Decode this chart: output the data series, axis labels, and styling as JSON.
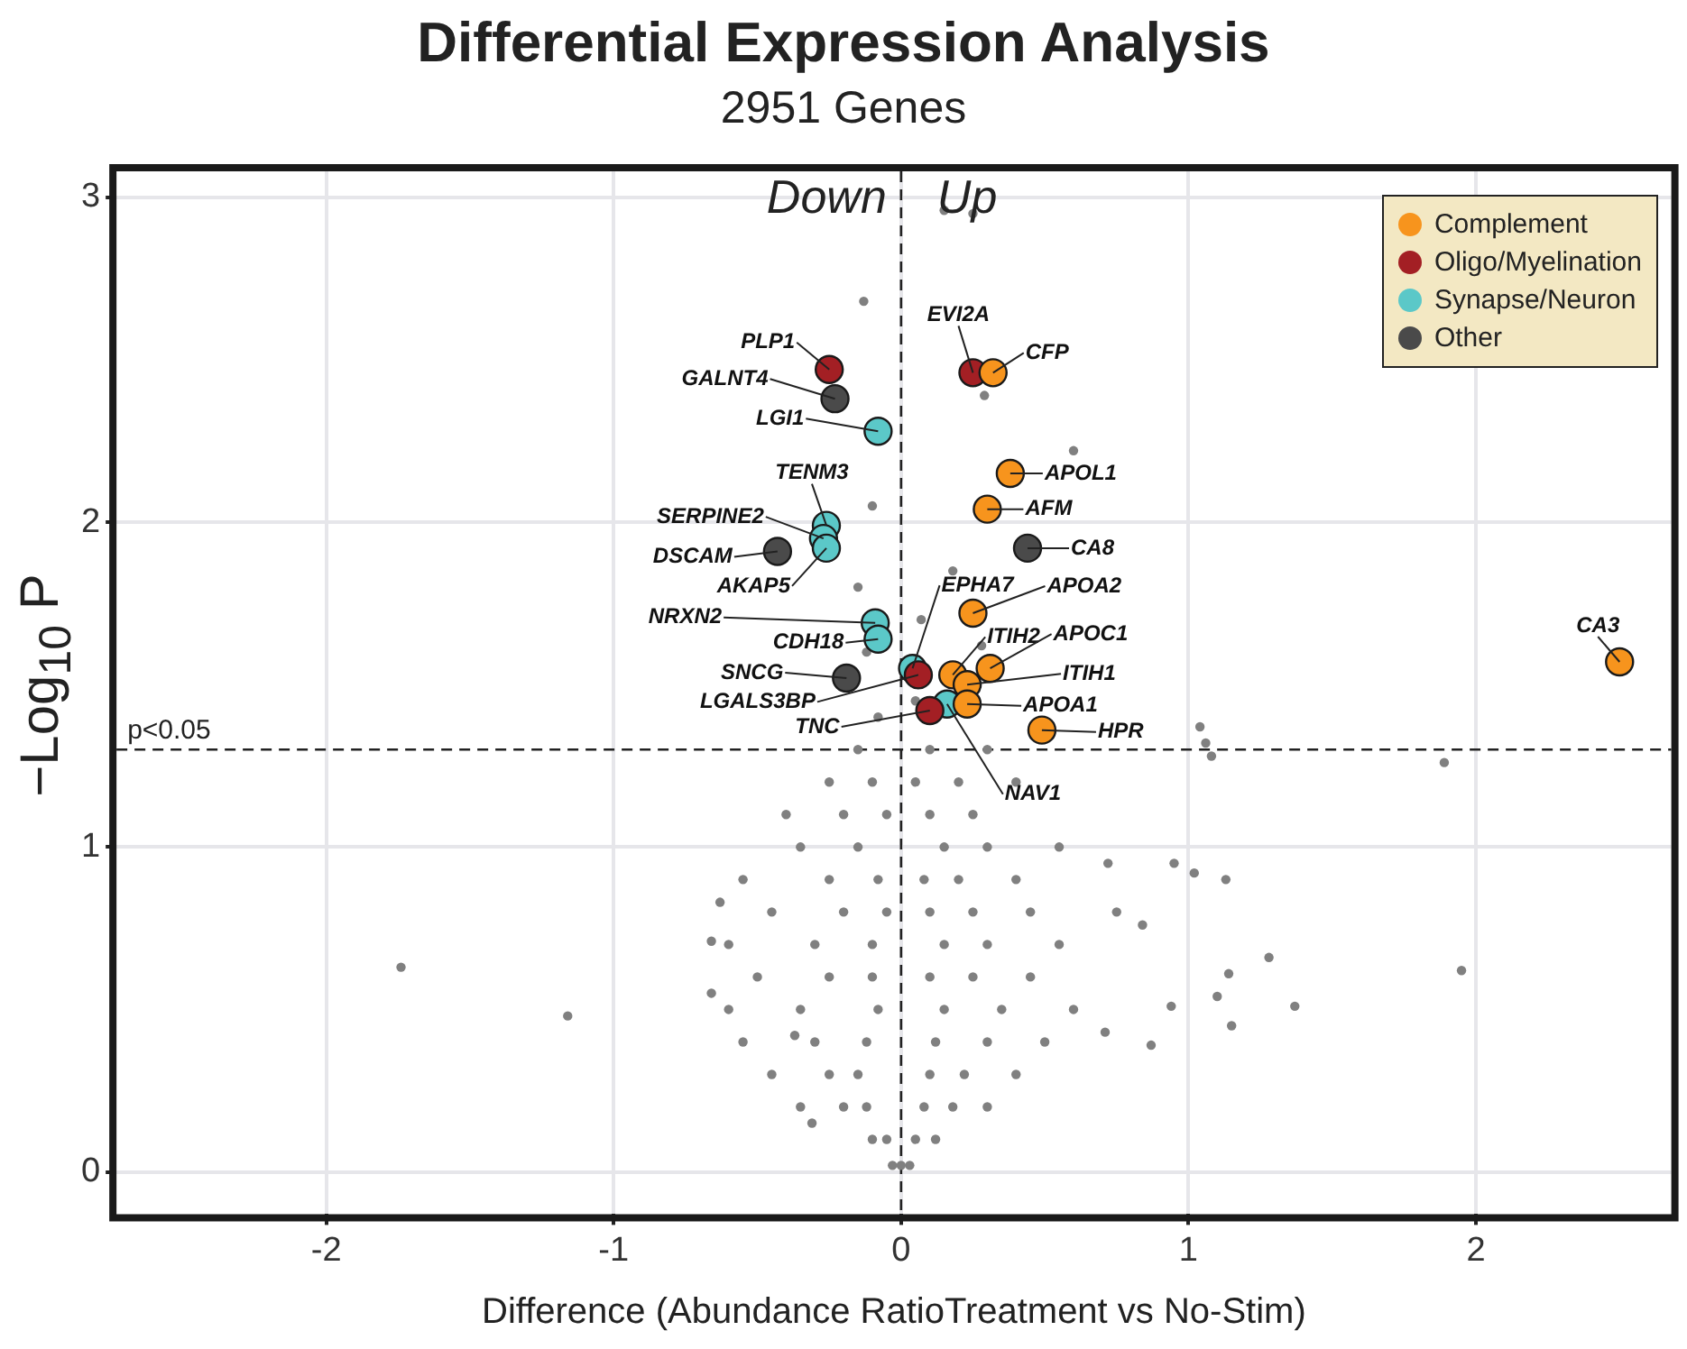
{
  "chart_data": {
    "type": "scatter",
    "title": "Differential Expression Analysis",
    "subtitle": "2951 Genes",
    "xlabel": "Difference (Abundance RatioTreatment vs No-Stim)",
    "ylabel": "−Log$_{10}$ P",
    "xlim": [
      -2.73,
      2.68
    ],
    "ylim": [
      -0.13,
      3.08
    ],
    "xticks": [
      -2,
      -1,
      0,
      1,
      2
    ],
    "yticks": [
      0,
      1,
      2,
      3
    ],
    "grid": true,
    "legend": "top right",
    "marker": "circle",
    "ref_lines": [
      {
        "axis": "y",
        "value": 1.3,
        "label": "p<0.05",
        "line_style": "dashed"
      },
      {
        "axis": "x",
        "value": 0,
        "line_style": "dashed"
      }
    ],
    "series": [
      {
        "color": "#808080",
        "x": [
          0.0,
          -0.03,
          0.03,
          -0.1,
          0.05,
          -0.05,
          0.12,
          -0.2,
          -0.12,
          0.08,
          0.18,
          -0.35,
          0.3,
          -0.25,
          -0.15,
          0.1,
          0.22,
          -0.45,
          0.4,
          -0.3,
          -0.12,
          0.12,
          0.3,
          -0.55,
          0.5,
          -0.35,
          -0.08,
          0.15,
          0.35,
          -0.6,
          0.6,
          -0.25,
          -0.1,
          0.1,
          0.25,
          0.45,
          -0.5,
          -0.3,
          -0.1,
          0.15,
          0.3,
          -0.6,
          0.55,
          -0.2,
          -0.05,
          0.1,
          0.25,
          -0.45,
          0.45,
          0.75,
          -0.25,
          -0.08,
          0.08,
          0.2,
          0.4,
          -0.55,
          -0.15,
          0.15,
          0.3,
          -0.35,
          0.55,
          -0.2,
          -0.05,
          0.1,
          0.25,
          -0.4,
          -0.25,
          -0.1,
          0.05,
          0.2,
          0.4,
          -0.15,
          0.1,
          0.3,
          -0.08,
          0.05,
          -0.12,
          0.28,
          -0.15,
          0.18,
          -0.1,
          0.07,
          -0.13,
          0.29,
          0.6,
          0.15,
          0.25,
          -1.74,
          -1.16,
          1.04,
          1.06,
          1.08,
          1.89,
          1.95,
          0.95,
          1.02,
          1.13,
          1.28,
          1.14,
          1.37,
          0.94,
          1.15,
          1.1,
          -0.63,
          -0.66,
          -0.66,
          0.72,
          0.84,
          0.71,
          0.87,
          -0.37,
          -0.31
        ],
        "values": [
          0.02,
          0.02,
          0.02,
          0.1,
          0.1,
          0.1,
          0.1,
          0.2,
          0.2,
          0.2,
          0.2,
          0.2,
          0.2,
          0.3,
          0.3,
          0.3,
          0.3,
          0.3,
          0.3,
          0.4,
          0.4,
          0.4,
          0.4,
          0.4,
          0.4,
          0.5,
          0.5,
          0.5,
          0.5,
          0.5,
          0.5,
          0.6,
          0.6,
          0.6,
          0.6,
          0.6,
          0.6,
          0.7,
          0.7,
          0.7,
          0.7,
          0.7,
          0.7,
          0.8,
          0.8,
          0.8,
          0.8,
          0.8,
          0.8,
          0.8,
          0.9,
          0.9,
          0.9,
          0.9,
          0.9,
          0.9,
          1.0,
          1.0,
          1.0,
          1.0,
          1.0,
          1.1,
          1.1,
          1.1,
          1.1,
          1.1,
          1.2,
          1.2,
          1.2,
          1.2,
          1.2,
          1.3,
          1.3,
          1.3,
          1.4,
          1.45,
          1.6,
          1.62,
          1.8,
          1.85,
          2.05,
          1.7,
          2.68,
          2.39,
          2.22,
          2.96,
          2.95,
          0.63,
          0.48,
          1.37,
          1.32,
          1.28,
          1.26,
          0.62,
          0.95,
          0.92,
          0.9,
          0.66,
          0.61,
          0.51,
          0.51,
          0.45,
          0.54,
          0.83,
          0.71,
          0.55,
          0.95,
          0.76,
          0.43,
          0.39,
          0.42,
          0.15
        ]
      },
      {
        "name": "Complement",
        "color": "#f7941d",
        "x": [
          0.18,
          0.31,
          0.23,
          0.23,
          0.25,
          0.49,
          0.3,
          0.38,
          0.32,
          2.5
        ],
        "values": [
          1.53,
          1.55,
          1.5,
          1.44,
          1.72,
          1.36,
          2.04,
          2.15,
          2.46,
          1.57
        ]
      },
      {
        "name": "Oligo/Myelination",
        "color": "#a31f24",
        "x": [
          -0.25,
          0.06,
          0.1,
          0.25
        ],
        "values": [
          2.47,
          1.53,
          1.42,
          2.46
        ]
      },
      {
        "name": "Synapse/Neuron",
        "color": "#5bc8c8",
        "x": [
          -0.08,
          -0.26,
          -0.27,
          -0.26,
          -0.09,
          -0.08,
          0.04,
          0.16
        ],
        "values": [
          2.28,
          1.99,
          1.95,
          1.92,
          1.69,
          1.64,
          1.55,
          1.44
        ]
      },
      {
        "name": "Other",
        "color": "#4a4a4a",
        "x": [
          -0.23,
          -0.43,
          -0.19,
          0.44
        ],
        "values": [
          2.38,
          1.91,
          1.52,
          1.92
        ]
      }
    ],
    "annotations": [
      "Down",
      "Up",
      {
        "text": "PLP1",
        "x": -0.25,
        "y": 2.47
      },
      {
        "text": "GALNT4",
        "x": -0.23,
        "y": 2.38
      },
      {
        "text": "LGI1",
        "x": -0.08,
        "y": 2.28
      },
      {
        "text": "TENM3",
        "x": -0.26,
        "y": 1.99
      },
      {
        "text": "SERPINE2",
        "x": -0.27,
        "y": 1.95
      },
      {
        "text": "AKAP5",
        "x": -0.26,
        "y": 1.92
      },
      {
        "text": "DSCAM",
        "x": -0.43,
        "y": 1.91
      },
      {
        "text": "NRXN2",
        "x": -0.09,
        "y": 1.69
      },
      {
        "text": "CDH18",
        "x": -0.08,
        "y": 1.64
      },
      {
        "text": "SNCG",
        "x": -0.19,
        "y": 1.52
      },
      {
        "text": "LGALS3BP",
        "x": 0.06,
        "y": 1.53
      },
      {
        "text": "TNC",
        "x": 0.1,
        "y": 1.42
      },
      {
        "text": "EPHA7",
        "x": 0.04,
        "y": 1.55
      },
      {
        "text": "NAV1",
        "x": 0.16,
        "y": 1.44
      },
      {
        "text": "ITIH2",
        "x": 0.18,
        "y": 1.53
      },
      {
        "text": "APOC1",
        "x": 0.31,
        "y": 1.55
      },
      {
        "text": "ITIH1",
        "x": 0.23,
        "y": 1.5
      },
      {
        "text": "APOA1",
        "x": 0.23,
        "y": 1.44
      },
      {
        "text": "APOA2",
        "x": 0.25,
        "y": 1.72
      },
      {
        "text": "HPR",
        "x": 0.49,
        "y": 1.36
      },
      {
        "text": "CA8",
        "x": 0.44,
        "y": 1.92
      },
      {
        "text": "AFM",
        "x": 0.3,
        "y": 2.04
      },
      {
        "text": "APOL1",
        "x": 0.38,
        "y": 2.15
      },
      {
        "text": "EVI2A",
        "x": 0.25,
        "y": 2.46
      },
      {
        "text": "CFP",
        "x": 0.32,
        "y": 2.46
      },
      {
        "text": "CA3",
        "x": 2.5,
        "y": 1.57
      }
    ]
  }
}
